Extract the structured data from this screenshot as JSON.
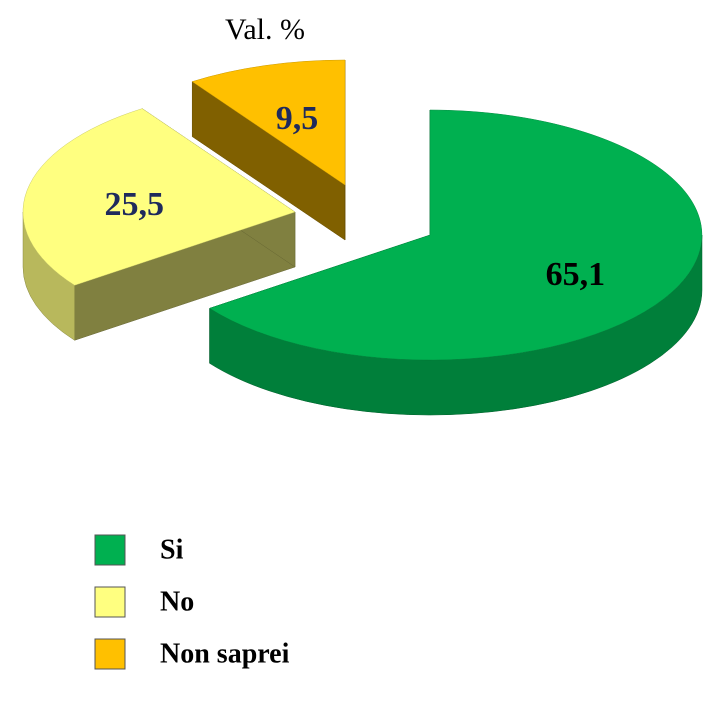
{
  "chart_data": {
    "type": "pie",
    "title": "Val. %",
    "categories": [
      "Si",
      "No",
      "Non saprei"
    ],
    "values": [
      65.1,
      25.5,
      9.5
    ],
    "value_labels": [
      "65,1",
      "25,5",
      "9,5"
    ],
    "colors": [
      "#00b050",
      "#ffff80",
      "#ffc000"
    ],
    "label_colors": [
      "#000000",
      "#1f2a5c",
      "#1f2a5c"
    ],
    "legend": "bottom-left"
  }
}
